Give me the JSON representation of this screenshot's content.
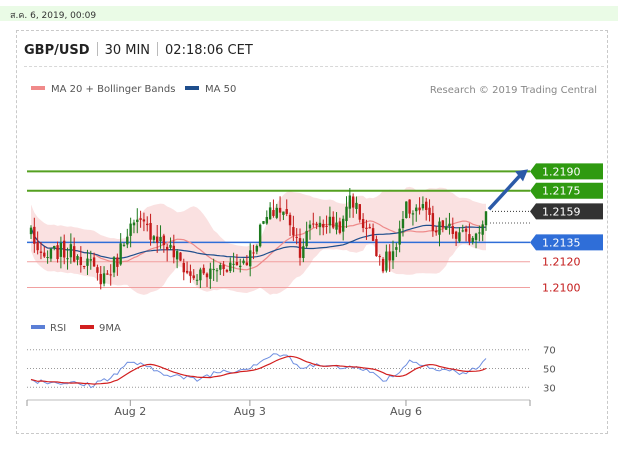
{
  "timestamp": "ส.ค. 6, 2019, 00:09",
  "header": {
    "symbol": "GBP/USD",
    "timeframe": "30 MIN",
    "time": "02:18:06 CET"
  },
  "legend": {
    "ma20": "MA 20 + Bollinger Bands",
    "ma50": "MA 50",
    "credit": "Research © 2019 Trading Central"
  },
  "colors": {
    "up": "#1e7a1e",
    "down": "#c41a1a",
    "ma50": "#1f4e8c",
    "band": "#f6c8c8",
    "resistance": "#55a020",
    "support": "#2f6ed8",
    "target_box": "#2f9a10",
    "current_box": "#333333"
  },
  "chart_data": [
    {
      "type": "candlestick",
      "symbol": "GBP/USD",
      "timeframe": "30 MIN",
      "ylim": [
        1.2088,
        1.2205
      ],
      "x_ticks": [
        "Aug 2",
        "Aug 3",
        "Aug 6"
      ],
      "last_price": 1.2159,
      "levels": [
        {
          "label": "1.2190",
          "value": 1.219,
          "kind": "resistance"
        },
        {
          "label": "1.2175",
          "value": 1.2175,
          "kind": "resistance"
        },
        {
          "label": "1.2135",
          "value": 1.2135,
          "kind": "support"
        },
        {
          "label": "1.2120",
          "value": 1.212,
          "kind": "minor"
        },
        {
          "label": "1.2100",
          "value": 1.21,
          "kind": "minor"
        }
      ],
      "price_label": "1.2159",
      "forecast_arrow": {
        "from": 1.2159,
        "to": 1.219
      },
      "legend": [
        "MA 20 + Bollinger Bands",
        "MA 50"
      ],
      "close_anchors": [
        [
          0,
          1.2145
        ],
        [
          3,
          1.212
        ],
        [
          8,
          1.2128
        ],
        [
          14,
          1.2126
        ],
        [
          17,
          1.212
        ],
        [
          20,
          1.2108
        ],
        [
          23,
          1.211
        ],
        [
          26,
          1.2122
        ],
        [
          29,
          1.2146
        ],
        [
          33,
          1.2148
        ],
        [
          37,
          1.2142
        ],
        [
          41,
          1.2132
        ],
        [
          45,
          1.212
        ],
        [
          48,
          1.2108
        ],
        [
          53,
          1.211
        ],
        [
          58,
          1.2118
        ],
        [
          62,
          1.2118
        ],
        [
          66,
          1.2125
        ],
        [
          70,
          1.215
        ],
        [
          74,
          1.2162
        ],
        [
          78,
          1.2152
        ],
        [
          81,
          1.213
        ],
        [
          85,
          1.215
        ],
        [
          90,
          1.215
        ],
        [
          94,
          1.2148
        ],
        [
          96,
          1.2172
        ],
        [
          100,
          1.215
        ],
        [
          103,
          1.2138
        ],
        [
          106,
          1.2118
        ],
        [
          110,
          1.213
        ],
        [
          113,
          1.216
        ],
        [
          116,
          1.2162
        ],
        [
          119,
          1.216
        ],
        [
          121,
          1.214
        ],
        [
          124,
          1.2148
        ],
        [
          128,
          1.214
        ],
        [
          131,
          1.2138
        ],
        [
          134,
          1.2144
        ],
        [
          137,
          1.2159
        ]
      ],
      "aug_x_index": [
        29,
        65,
        112
      ]
    },
    {
      "type": "line",
      "title": "RSI",
      "series": [
        {
          "name": "RSI"
        },
        {
          "name": "9MA"
        }
      ],
      "ylim": [
        25,
        75
      ],
      "y_ticks": [
        70,
        50,
        30
      ],
      "rsi_anchors": [
        [
          0,
          38
        ],
        [
          4,
          36
        ],
        [
          10,
          35
        ],
        [
          18,
          32
        ],
        [
          22,
          38
        ],
        [
          26,
          45
        ],
        [
          30,
          58
        ],
        [
          34,
          52
        ],
        [
          38,
          47
        ],
        [
          42,
          44
        ],
        [
          46,
          40
        ],
        [
          50,
          38
        ],
        [
          54,
          44
        ],
        [
          58,
          48
        ],
        [
          62,
          48
        ],
        [
          66,
          52
        ],
        [
          70,
          60
        ],
        [
          74,
          66
        ],
        [
          78,
          60
        ],
        [
          82,
          48
        ],
        [
          86,
          57
        ],
        [
          90,
          52
        ],
        [
          94,
          50
        ],
        [
          98,
          54
        ],
        [
          102,
          46
        ],
        [
          106,
          38
        ],
        [
          110,
          44
        ],
        [
          114,
          58
        ],
        [
          118,
          56
        ],
        [
          122,
          48
        ],
        [
          126,
          48
        ],
        [
          130,
          45
        ],
        [
          134,
          49
        ],
        [
          137,
          60
        ]
      ]
    }
  ]
}
